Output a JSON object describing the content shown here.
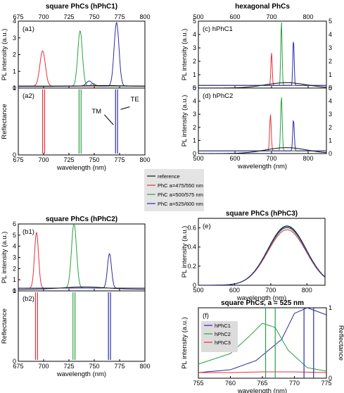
{
  "figure": {
    "colors": {
      "red": "#e8303a",
      "green": "#2aa044",
      "blue": "#2c2ca8",
      "black": "#111111",
      "frame": "#000000"
    },
    "legend": {
      "items": [
        {
          "label": "reference",
          "color": "#111111"
        },
        {
          "label": "PhC a=475/550 nm",
          "color": "#e8303a"
        },
        {
          "label": "PhC a=500/575 nm",
          "color": "#2aa044"
        },
        {
          "label": "PhC a=525/600 nm",
          "color": "#2c2ca8"
        }
      ]
    }
  },
  "chart_data": [
    {
      "id": "a1",
      "type": "line",
      "title": "square PhCs (hPhC1)",
      "panel_label": "(a1)",
      "xlim": [
        675,
        800
      ],
      "ylim": [
        0,
        4
      ],
      "ylabel": "PL intensity (a.u.)",
      "xticks": [
        675,
        700,
        725,
        750,
        775,
        800
      ],
      "yticks": [
        0,
        1,
        2,
        3,
        4
      ],
      "series": [
        {
          "color": "red",
          "peaks": [
            [
              699,
              2.1,
              3.8
            ]
          ],
          "baseline": 0.12
        },
        {
          "color": "green",
          "peaks": [
            [
              736,
              3.3,
              3.2
            ],
            [
              749,
              0.15,
              3
            ]
          ],
          "baseline": 0.12
        },
        {
          "color": "blue",
          "peaks": [
            [
              772,
              3.8,
              3.4
            ],
            [
              745,
              0.3,
              4
            ]
          ],
          "baseline": 0.12
        },
        {
          "color": "black",
          "peaks": [
            [
              760,
              0.05,
              30
            ]
          ],
          "baseline": 0.1
        }
      ]
    },
    {
      "id": "a2",
      "type": "line",
      "panel_label": "(a2)",
      "xlim": [
        675,
        800
      ],
      "ylim": [
        0,
        1
      ],
      "ylabel": "Reflectance",
      "xlabel": "wavelength (nm)",
      "xticks": [
        675,
        700,
        725,
        750,
        775,
        800
      ],
      "yticks": [
        0,
        1
      ],
      "annotations": [
        "TM",
        "TE"
      ],
      "series": [
        {
          "color": "red",
          "lines": [
            699,
            701
          ]
        },
        {
          "color": "green",
          "lines": [
            735,
            737
          ]
        },
        {
          "color": "blue",
          "lines": [
            771,
            773
          ]
        }
      ]
    },
    {
      "id": "c",
      "type": "line",
      "title": "hexagonal PhCs",
      "panel_label": "(c) hPhC1",
      "xlim": [
        500,
        850
      ],
      "ylim": [
        0,
        5
      ],
      "ylabel": "PL intensity (a.u.)",
      "xticks": [
        500,
        600,
        700,
        800
      ],
      "yticks": [
        0,
        1,
        2,
        3,
        4,
        5
      ],
      "series": [
        {
          "color": "red",
          "peaks": [
            [
              700,
              2.5,
              2.5
            ]
          ],
          "baseline": 0.2
        },
        {
          "color": "green",
          "peaks": [
            [
              727,
              4.9,
              2.5
            ]
          ],
          "baseline": 0.2
        },
        {
          "color": "blue",
          "peaks": [
            [
              760,
              3.5,
              2.5
            ]
          ],
          "baseline": 0.2
        },
        {
          "color": "black",
          "hump": [
            740,
            0.4,
            80
          ]
        }
      ]
    },
    {
      "id": "d",
      "type": "line",
      "panel_label": "(d) hPhC2",
      "xlim": [
        500,
        850
      ],
      "ylim": [
        0,
        5
      ],
      "ylabel": "PL intensity (a.u.)",
      "xlabel": "wavelength (nm)",
      "xticks": [
        500,
        600,
        700,
        800
      ],
      "yticks": [
        0,
        1,
        2,
        3,
        4,
        5
      ],
      "series": [
        {
          "color": "red",
          "peaks": [
            [
              697,
              2.8,
              3
            ]
          ],
          "baseline": 0.2
        },
        {
          "color": "green",
          "peaks": [
            [
              727,
              4.2,
              3
            ]
          ],
          "baseline": 0.2
        },
        {
          "color": "blue",
          "peaks": [
            [
              760,
              2.4,
              3
            ]
          ],
          "baseline": 0.2
        },
        {
          "color": "black",
          "hump": [
            740,
            0.45,
            80
          ]
        }
      ]
    },
    {
      "id": "b1",
      "type": "line",
      "title": "square PhCs (hPhC2)",
      "panel_label": "(b1)",
      "xlim": [
        675,
        800
      ],
      "ylim": [
        0,
        6
      ],
      "ylabel": "PL intensity (a.u.)",
      "xticks": [
        675,
        700,
        725,
        750,
        775,
        800
      ],
      "yticks": [
        0,
        1,
        2,
        3,
        4,
        5,
        6
      ],
      "series": [
        {
          "color": "red",
          "peaks": [
            [
              693,
              5.0,
              2.8
            ]
          ],
          "baseline": 0.25
        },
        {
          "color": "green",
          "peaks": [
            [
              730,
              5.8,
              3.5
            ]
          ],
          "baseline": 0.25
        },
        {
          "color": "blue",
          "peaks": [
            [
              765,
              3.1,
              2.8
            ]
          ],
          "baseline": 0.25
        },
        {
          "color": "black",
          "peaks": [
            [
              740,
              0.2,
              30
            ]
          ],
          "baseline": 0.15
        }
      ]
    },
    {
      "id": "b2",
      "type": "line",
      "panel_label": "(b2)",
      "xlim": [
        675,
        800
      ],
      "ylim": [
        0,
        1
      ],
      "ylabel": "Reflectance",
      "xlabel": "wavelength (nm)",
      "xticks": [
        675,
        700,
        725,
        750,
        775,
        800
      ],
      "yticks": [
        0,
        1
      ],
      "series": [
        {
          "color": "red",
          "lines": [
            692,
            694
          ]
        },
        {
          "color": "green",
          "lines": [
            729,
            731
          ]
        },
        {
          "color": "blue",
          "lines": [
            764,
            766
          ]
        }
      ]
    },
    {
      "id": "e",
      "type": "line",
      "title": "square PhCs (hPhC3)",
      "panel_label": "(e)",
      "xlim": [
        500,
        850
      ],
      "ylim": [
        0,
        0.7
      ],
      "ylabel": "PL intensity (a.u.)",
      "xlabel": "wavelength (nm)",
      "xticks": [
        500,
        600,
        700,
        800
      ],
      "yticks": [
        0,
        0.2,
        0.4,
        0.6
      ],
      "series": [
        {
          "color": "black",
          "hump": [
            745,
            0.62,
            75
          ]
        },
        {
          "color": "red",
          "hump": [
            745,
            0.58,
            75
          ]
        },
        {
          "color": "green",
          "hump": [
            745,
            0.6,
            75
          ]
        },
        {
          "color": "blue",
          "hump": [
            745,
            0.61,
            75
          ]
        }
      ]
    },
    {
      "id": "f",
      "type": "line",
      "title": "square PhCs, a = 525 nm",
      "panel_label": "(f)",
      "xlim": [
        755,
        775
      ],
      "ylim": [
        0,
        1
      ],
      "ylabel": "PL intensity (a.u.)",
      "y2label": "Reflectance",
      "xlabel": "wavelength (nm)",
      "xticks": [
        755,
        760,
        765,
        770,
        775
      ],
      "y2ticks": [
        0,
        1
      ],
      "legend": [
        "hPhC1",
        "hPhC2",
        "hPhC3"
      ],
      "series": [
        {
          "name": "hPhC1",
          "color": "blue",
          "curve": [
            [
              755,
              0.08
            ],
            [
              760,
              0.12
            ],
            [
              764,
              0.25
            ],
            [
              768,
              0.55
            ],
            [
              770,
              0.92
            ],
            [
              772,
              1.0
            ],
            [
              775,
              0.9
            ]
          ]
        },
        {
          "name": "hPhC2",
          "color": "green",
          "curve": [
            [
              755,
              0.2
            ],
            [
              760,
              0.35
            ],
            [
              763,
              0.6
            ],
            [
              765,
              0.78
            ],
            [
              767,
              0.72
            ],
            [
              769,
              0.4
            ],
            [
              772,
              0.15
            ],
            [
              775,
              0.1
            ]
          ]
        },
        {
          "name": "hPhC3",
          "color": "red",
          "curve": [
            [
              755,
              0.08
            ],
            [
              760,
              0.08
            ],
            [
              765,
              0.09
            ],
            [
              770,
              0.09
            ],
            [
              775,
              0.08
            ]
          ]
        }
      ],
      "reflectance_lines": [
        765.5,
        767,
        771.5,
        773
      ]
    }
  ]
}
